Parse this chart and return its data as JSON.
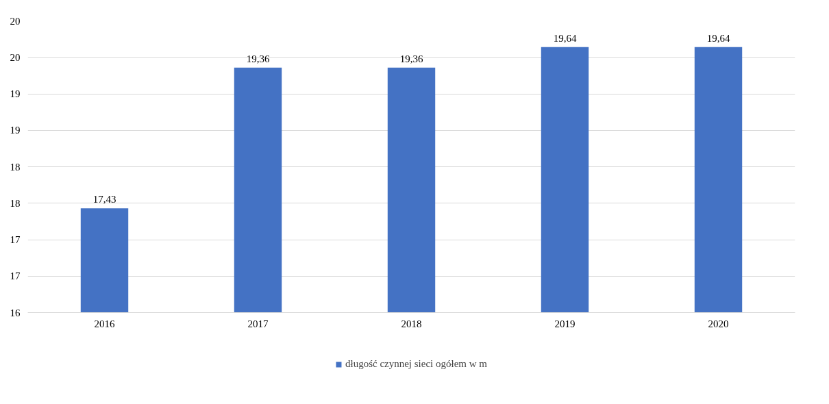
{
  "chart_data": {
    "type": "bar",
    "categories": [
      "2016",
      "2017",
      "2018",
      "2019",
      "2020"
    ],
    "series": [
      {
        "name": "długość czynnej sieci ogółem w m",
        "color": "#4472c4",
        "values": [
          17.43,
          19.36,
          19.36,
          19.64,
          19.64
        ],
        "value_labels": [
          "17,43",
          "19,36",
          "19,36",
          "19,64",
          "19,64"
        ]
      }
    ],
    "ylim": [
      16,
      20
    ],
    "yticks": [
      16,
      {
        "value": 16.5,
        "label": "17"
      },
      17,
      {
        "value": 17.5,
        "label": "18"
      },
      18,
      {
        "value": 18.5,
        "label": "19"
      },
      19,
      {
        "value": 19.5,
        "label": "20"
      },
      20
    ],
    "grid": "y",
    "legend": "bottom"
  }
}
